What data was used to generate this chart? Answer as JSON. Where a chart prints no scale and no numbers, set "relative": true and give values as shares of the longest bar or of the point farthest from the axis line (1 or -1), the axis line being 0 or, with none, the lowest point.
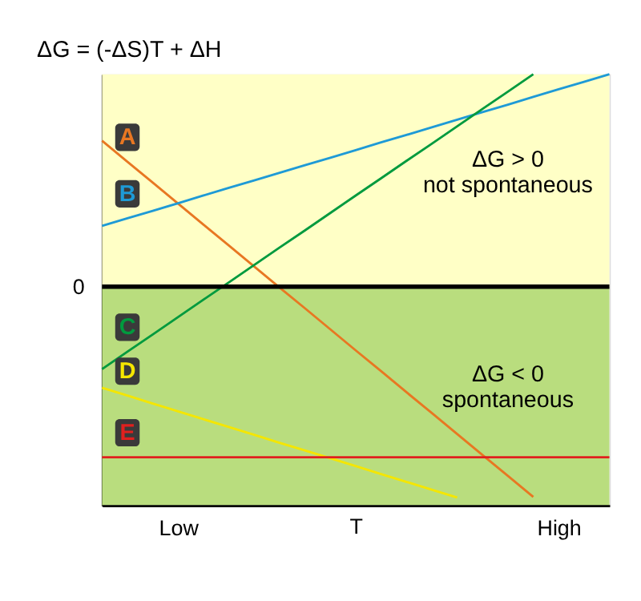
{
  "chart_data": {
    "type": "line",
    "title": "ΔG = (-ΔS)T + ΔH",
    "xlabel": "T",
    "relative": true,
    "categories": [
      null,
      null,
      null,
      "Low",
      null,
      null,
      null,
      null,
      null,
      null,
      null,
      null,
      null,
      null,
      null,
      null,
      null,
      null,
      "High",
      null,
      null
    ],
    "line_style": "solid",
    "marker": "none",
    "series": [
      {
        "name": "A",
        "color": "#e87722",
        "values": [
          0.687,
          0.588,
          0.49,
          0.391,
          0.292,
          0.194,
          0.095,
          -0.004,
          -0.102,
          -0.201,
          -0.3,
          -0.398,
          -0.497,
          -0.595,
          -0.694,
          -0.793,
          -0.891,
          -0.99,
          null,
          null,
          null
        ]
      },
      {
        "name": "B",
        "color": "#1e9ad6",
        "values": [
          0.286,
          0.322,
          0.357,
          0.393,
          0.429,
          0.465,
          0.5,
          0.536,
          0.572,
          0.607,
          0.643,
          0.679,
          0.714,
          0.75,
          0.786,
          0.822,
          0.857,
          0.893,
          0.929,
          0.964,
          1.0
        ]
      },
      {
        "name": "C",
        "color": "#009a3e",
        "values": [
          -0.388,
          -0.306,
          -0.225,
          -0.143,
          -0.061,
          0.02,
          0.102,
          0.184,
          0.265,
          0.347,
          0.429,
          0.51,
          0.592,
          0.673,
          0.755,
          0.837,
          0.918,
          1.0,
          null,
          null,
          null
        ]
      },
      {
        "name": "D",
        "color": "#f5e600",
        "values": [
          -0.476,
          -0.513,
          -0.55,
          -0.587,
          -0.624,
          -0.661,
          -0.698,
          -0.735,
          -0.771,
          -0.808,
          -0.845,
          -0.882,
          -0.919,
          -0.956,
          -0.993,
          null,
          null,
          null,
          null,
          null,
          null
        ]
      },
      {
        "name": "E",
        "color": "#e0201e",
        "values": [
          -0.803,
          -0.803,
          -0.803,
          -0.803,
          -0.803,
          -0.803,
          -0.803,
          -0.803,
          -0.803,
          -0.803,
          -0.803,
          -0.803,
          -0.803,
          -0.803,
          -0.803,
          -0.803,
          -0.803,
          -0.803,
          -0.803,
          -0.803,
          -0.803
        ]
      }
    ],
    "bands": [
      {
        "axis": "y",
        "from": 0,
        "to": 1.0,
        "label": "ΔG > 0\nnot spontaneous",
        "color": "#ffffc6"
      },
      {
        "axis": "y",
        "from": -1.03,
        "to": 0,
        "label": "ΔG < 0\nspontaneous",
        "color": "#b9dd7e"
      }
    ],
    "ref_lines": [
      {
        "axis": "y",
        "value": 0,
        "label": "0",
        "color": "#000000",
        "line_style": "solid"
      }
    ]
  }
}
